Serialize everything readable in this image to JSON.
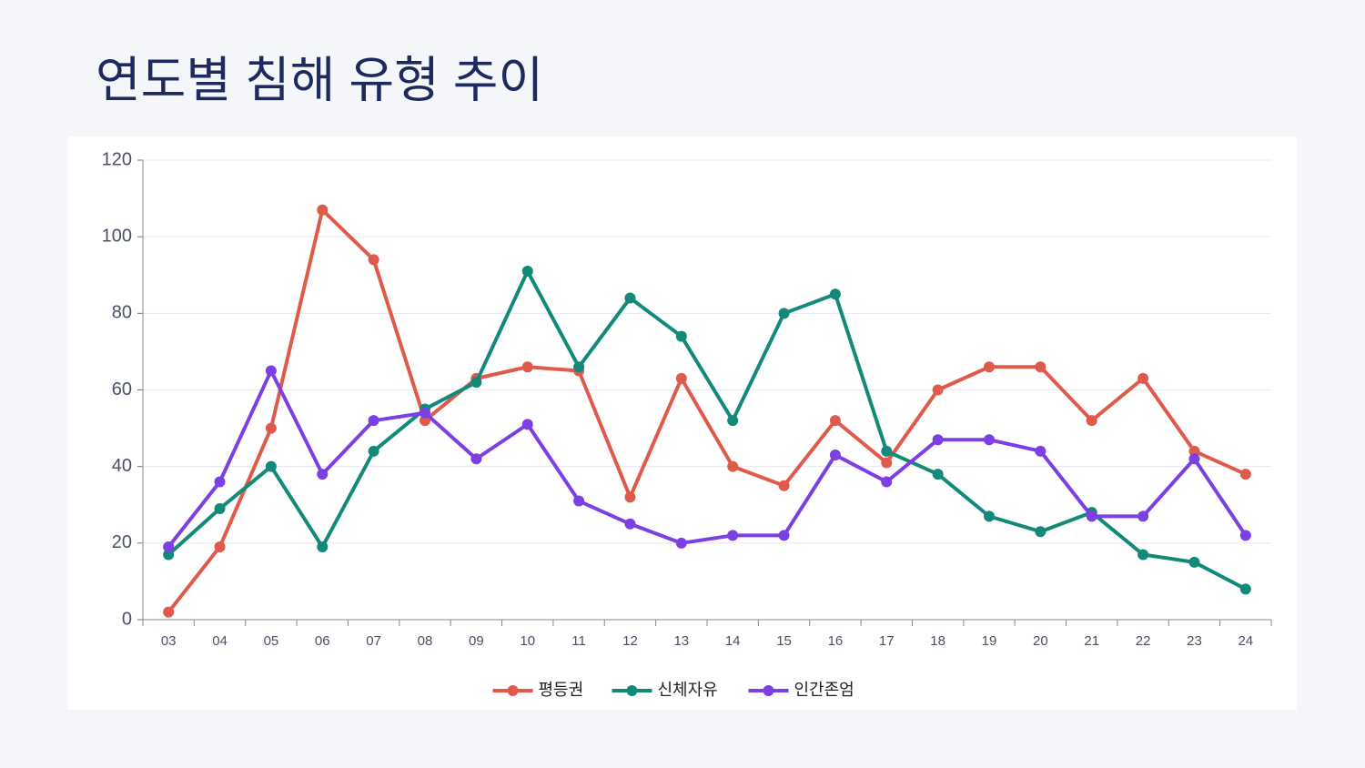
{
  "chart_data": {
    "type": "line",
    "title": "연도별 침해 유형 추이",
    "categories": [
      "03",
      "04",
      "05",
      "06",
      "07",
      "08",
      "09",
      "10",
      "11",
      "12",
      "13",
      "14",
      "15",
      "16",
      "17",
      "18",
      "19",
      "20",
      "21",
      "22",
      "23",
      "24"
    ],
    "series": [
      {
        "name": "평등권",
        "color": "#e05a4b",
        "values": [
          2,
          19,
          50,
          107,
          94,
          52,
          63,
          66,
          65,
          32,
          63,
          40,
          35,
          52,
          41,
          60,
          66,
          66,
          52,
          63,
          44,
          38
        ]
      },
      {
        "name": "신체자유",
        "color": "#13897a",
        "values": [
          17,
          29,
          40,
          19,
          44,
          55,
          62,
          91,
          66,
          84,
          74,
          52,
          80,
          85,
          44,
          38,
          27,
          23,
          28,
          17,
          15,
          8
        ]
      },
      {
        "name": "인간존엄",
        "color": "#7b3fe4",
        "values": [
          19,
          36,
          65,
          38,
          52,
          54,
          42,
          51,
          31,
          25,
          20,
          22,
          22,
          43,
          36,
          47,
          47,
          44,
          27,
          27,
          42,
          22
        ]
      }
    ],
    "ylim": [
      0,
      120
    ],
    "yticks": [
      0,
      20,
      40,
      60,
      80,
      100,
      120
    ],
    "grid": true,
    "legend": "bottom"
  }
}
